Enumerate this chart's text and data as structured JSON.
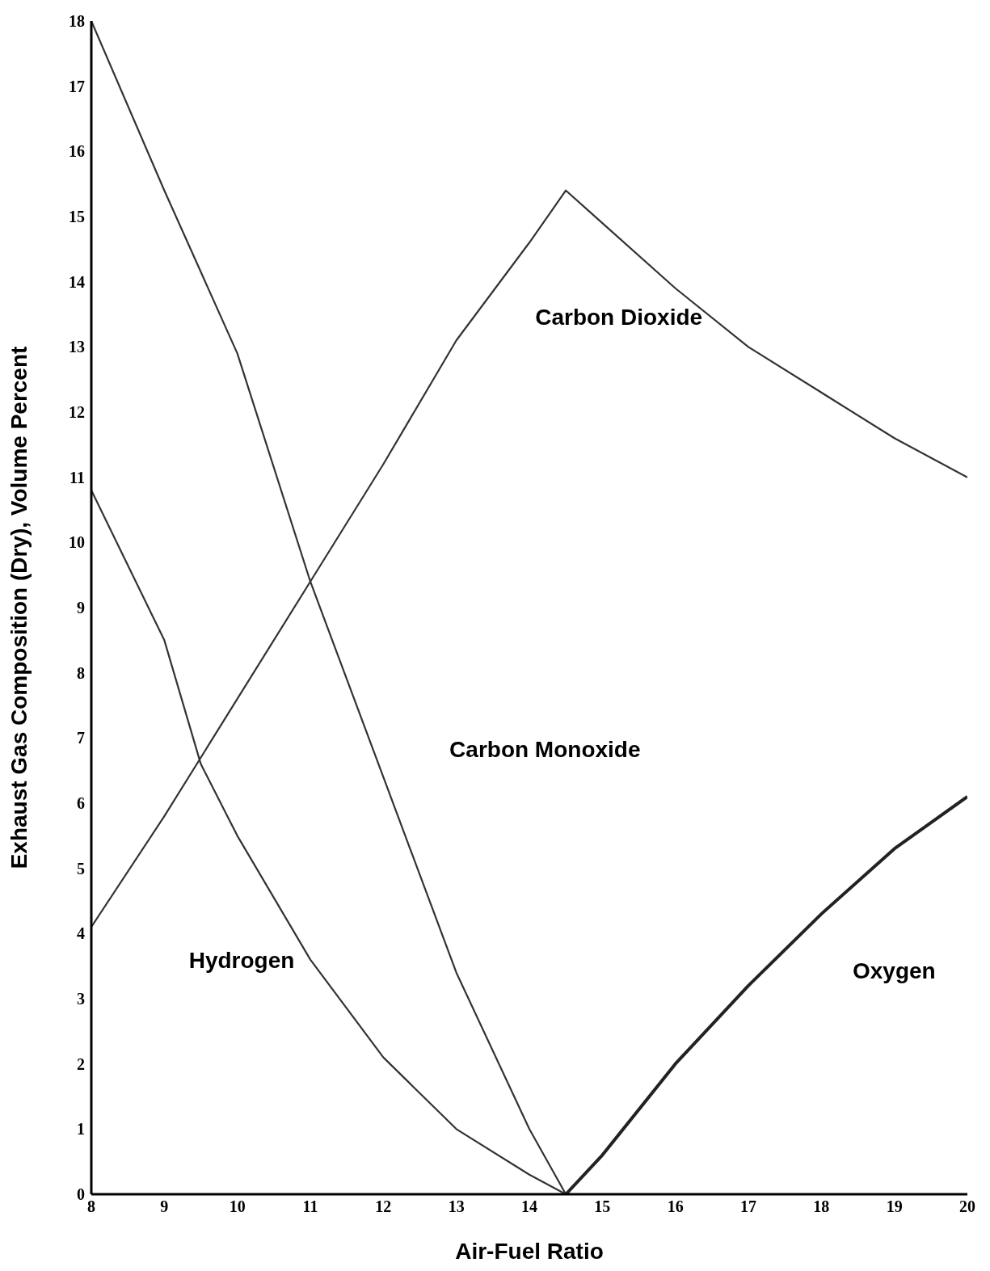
{
  "chart_data": {
    "type": "line",
    "xlabel": "Air-Fuel Ratio",
    "ylabel": "Exhaust Gas Composition (Dry), Volume Percent",
    "xlim": [
      8,
      20
    ],
    "xticks": [
      8,
      9,
      10,
      11,
      12,
      13,
      14,
      15,
      16,
      17,
      18,
      19,
      20
    ],
    "ylim": [
      0,
      18
    ],
    "yticks": [
      0,
      1,
      2,
      3,
      4,
      5,
      6,
      7,
      8,
      9,
      10,
      11,
      12,
      13,
      14,
      15,
      16,
      17,
      18
    ],
    "grid": false,
    "legend": false,
    "marker": "none",
    "line_style": "solid",
    "series": [
      {
        "name": "Carbon Dioxide",
        "color": "#333333",
        "x": [
          8,
          9,
          10,
          11,
          12,
          13,
          14,
          14.5,
          15,
          16,
          17,
          18,
          19,
          20
        ],
        "values": [
          4.1,
          5.8,
          7.6,
          9.4,
          11.2,
          13.1,
          14.6,
          15.4,
          14.9,
          13.9,
          13.0,
          12.3,
          11.6,
          11.0
        ]
      },
      {
        "name": "Carbon Monoxide",
        "color": "#333333",
        "x": [
          8,
          9,
          10,
          11,
          12,
          13,
          14,
          14.5
        ],
        "values": [
          18,
          15.4,
          12.9,
          9.4,
          6.4,
          3.4,
          1.0,
          0
        ]
      },
      {
        "name": "Hydrogen",
        "color": "#333333",
        "x": [
          8,
          9,
          9.5,
          10,
          11,
          12,
          13,
          14,
          14.5
        ],
        "values": [
          10.8,
          8.5,
          6.6,
          5.5,
          3.6,
          2.1,
          1.0,
          0.3,
          0
        ]
      },
      {
        "name": "Oxygen",
        "color": "#222222",
        "x": [
          14.5,
          15,
          16,
          17,
          18,
          19,
          20
        ],
        "values": [
          0,
          0.6,
          2.0,
          3.2,
          4.3,
          5.3,
          6.1
        ]
      }
    ]
  }
}
